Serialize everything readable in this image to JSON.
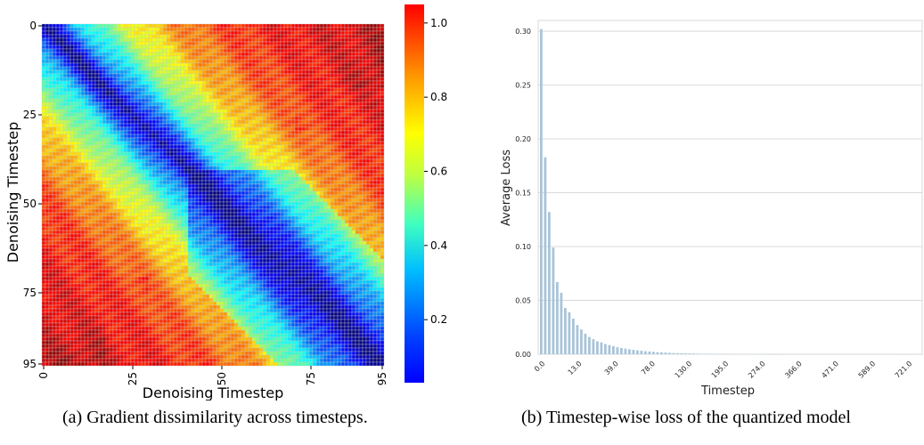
{
  "figure_a": {
    "caption": "(a) Gradient dissimilarity across timesteps.",
    "chart_data": {
      "type": "heatmap",
      "xlabel": "Denoising Timestep",
      "ylabel": "Denoising Timestep",
      "n": 96,
      "x_ticks": [
        "0",
        "25",
        "50",
        "75",
        "95"
      ],
      "x_tick_values": [
        0,
        25,
        50,
        75,
        95
      ],
      "y_ticks": [
        "0",
        "25",
        "50",
        "75",
        "95"
      ],
      "y_tick_values": [
        0,
        25,
        50,
        75,
        95
      ],
      "colorbar": {
        "min": 0.03,
        "max": 1.05,
        "ticks": [
          "0.2",
          "0.4",
          "0.6",
          "0.8",
          "1.0"
        ],
        "tick_values": [
          0.2,
          0.4,
          0.6,
          0.8,
          1.0
        ],
        "colormap": "jet"
      },
      "description_values": "Dissimilarity is low (~0.05) along the diagonal and grows to ~1.0 far from it; early rows vs late columns are ~0.8-1.0.",
      "grid_line_color": "#c8c8c8"
    }
  },
  "figure_b": {
    "caption": "(b) Timestep-wise loss of the quantized model",
    "chart_data": {
      "type": "bar",
      "xlabel": "Timestep",
      "ylabel": "Average Loss",
      "ylim": [
        0,
        0.31
      ],
      "y_ticks": [
        "0.00",
        "0.05",
        "0.10",
        "0.15",
        "0.20",
        "0.25",
        "0.30"
      ],
      "y_tick_values": [
        0.0,
        0.05,
        0.1,
        0.15,
        0.2,
        0.25,
        0.3
      ],
      "x_ticks": [
        "0.0",
        "13.0",
        "39.0",
        "78.0",
        "130.0",
        "195.0",
        "274.0",
        "366.0",
        "471.0",
        "589.0",
        "721.0"
      ],
      "values": [
        0.302,
        0.183,
        0.132,
        0.099,
        0.067,
        0.057,
        0.043,
        0.039,
        0.033,
        0.027,
        0.023,
        0.019,
        0.016,
        0.014,
        0.012,
        0.011,
        0.0095,
        0.0085,
        0.0075,
        0.0065,
        0.0058,
        0.0052,
        0.0046,
        0.0041,
        0.0036,
        0.0032,
        0.0028,
        0.0025,
        0.0022,
        0.0019,
        0.0017,
        0.0015,
        0.0013,
        0.0011,
        0.001,
        0.0009,
        0.0008,
        0.0007,
        0.0006,
        0.0005,
        0.00045,
        0.0004,
        0.00035,
        0.0003,
        0.00025,
        0.0002,
        0.0002,
        0.00015,
        0.00015,
        0.0001,
        0.0001,
        0.0001,
        8e-05,
        8e-05,
        6e-05,
        6e-05,
        5e-05,
        5e-05,
        4e-05,
        4e-05,
        3e-05,
        3e-05,
        3e-05,
        2e-05,
        2e-05,
        2e-05,
        2e-05,
        1e-05,
        1e-05,
        1e-05,
        1e-05,
        1e-05,
        1e-05,
        1e-05,
        1e-05,
        1e-05,
        1e-05,
        1e-05,
        1e-05,
        1e-05,
        1e-05,
        1e-05,
        1e-05,
        1e-05,
        1e-05,
        1e-05,
        1e-05,
        1e-05,
        1e-05,
        1e-05,
        1e-05,
        1e-05,
        1e-05,
        1e-05,
        1e-05,
        1e-05,
        1e-05,
        1e-05,
        1e-05,
        1e-05
      ],
      "bar_color": "#a9c4d8",
      "grid": true
    }
  }
}
